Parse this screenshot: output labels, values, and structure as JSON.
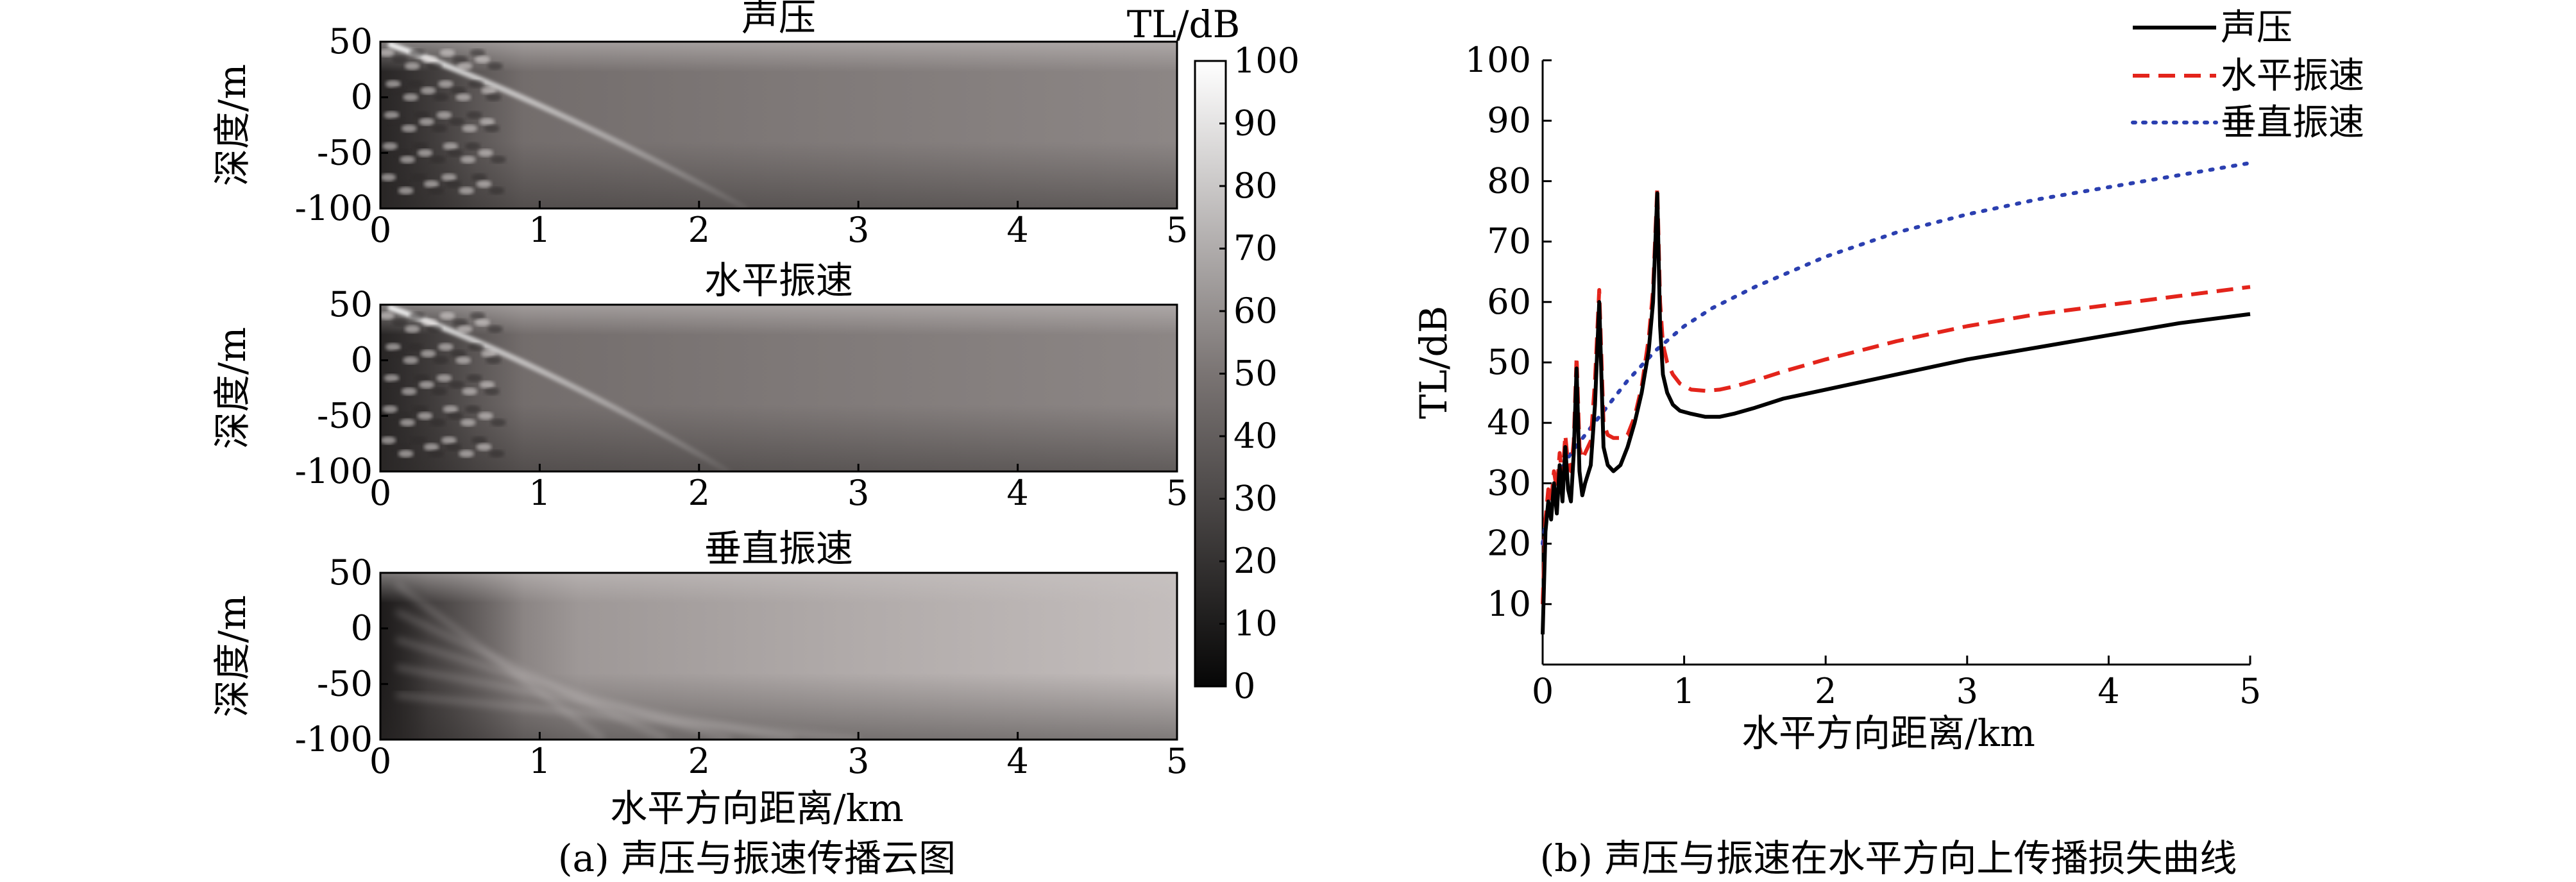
{
  "chart_data": [
    {
      "type": "heatmap",
      "panel": "a",
      "caption": "(a) 声压与振速传播云图",
      "xlabel": "水平方向距离/km",
      "ylabel": "深度/m",
      "xlim": [
        0,
        5
      ],
      "ylim": [
        -100,
        50
      ],
      "xticks": [
        "0",
        "1",
        "2",
        "3",
        "4",
        "5"
      ],
      "yticks": [
        "50",
        "0",
        "-50",
        "-100"
      ],
      "subplots": [
        {
          "title": "声压"
        },
        {
          "title": "水平振速"
        },
        {
          "title": "垂直振速"
        }
      ],
      "colorbar": {
        "label": "TL/dB",
        "range": [
          0,
          100
        ],
        "ticks": [
          "100",
          "90",
          "80",
          "70",
          "60",
          "50",
          "40",
          "30",
          "20",
          "10",
          "0"
        ]
      }
    },
    {
      "type": "line",
      "panel": "b",
      "caption": "(b) 声压与振速在水平方向上传播损失曲线",
      "xlabel": "水平方向距离/km",
      "ylabel": "TL/dB",
      "xlim": [
        0,
        5
      ],
      "ylim": [
        0,
        100
      ],
      "xticks": [
        "0",
        "1",
        "2",
        "3",
        "4",
        "5"
      ],
      "yticks": [
        "10",
        "20",
        "30",
        "40",
        "50",
        "60",
        "70",
        "80",
        "90",
        "100"
      ],
      "series": [
        {
          "name": "声压",
          "style": "solid",
          "color": "#000000",
          "x": [
            0.0,
            0.02,
            0.04,
            0.06,
            0.08,
            0.1,
            0.12,
            0.14,
            0.16,
            0.18,
            0.2,
            0.22,
            0.24,
            0.26,
            0.28,
            0.3,
            0.34,
            0.37,
            0.4,
            0.43,
            0.46,
            0.5,
            0.55,
            0.6,
            0.65,
            0.7,
            0.75,
            0.78,
            0.81,
            0.83,
            0.85,
            0.88,
            0.92,
            0.97,
            1.05,
            1.15,
            1.25,
            1.35,
            1.5,
            1.7,
            2.0,
            2.5,
            3.0,
            3.5,
            4.0,
            4.5,
            5.0
          ],
          "y": [
            5,
            22,
            27,
            24,
            30,
            25,
            33,
            27,
            36,
            29,
            27,
            35,
            49,
            32,
            28,
            30,
            33,
            43,
            60,
            36,
            33,
            32,
            33,
            36,
            40,
            45,
            52,
            60,
            78,
            56,
            48,
            45,
            43,
            42,
            41.5,
            41,
            41,
            41.5,
            42.5,
            44,
            45.5,
            48,
            50.5,
            52.5,
            54.5,
            56.5,
            58
          ]
        },
        {
          "name": "水平振速",
          "style": "dashed",
          "color": "#e3241b",
          "x": [
            0.0,
            0.02,
            0.04,
            0.06,
            0.08,
            0.1,
            0.12,
            0.14,
            0.16,
            0.18,
            0.2,
            0.22,
            0.24,
            0.26,
            0.28,
            0.3,
            0.34,
            0.37,
            0.4,
            0.43,
            0.46,
            0.5,
            0.55,
            0.6,
            0.65,
            0.7,
            0.75,
            0.78,
            0.81,
            0.83,
            0.85,
            0.88,
            0.92,
            0.97,
            1.05,
            1.15,
            1.25,
            1.35,
            1.5,
            1.7,
            2.0,
            2.5,
            3.0,
            3.5,
            4.0,
            4.5,
            5.0
          ],
          "y": [
            10,
            24,
            29,
            27,
            32,
            29,
            35,
            31,
            38,
            33,
            32,
            37,
            51,
            36,
            34,
            35,
            37,
            47,
            62,
            40,
            38,
            37.5,
            37.5,
            38,
            41,
            46,
            54,
            62,
            79,
            60,
            53,
            50,
            48,
            46.5,
            45.5,
            45.3,
            45.5,
            46,
            47,
            48.5,
            50.5,
            53.5,
            56,
            58,
            59.5,
            61,
            62.5
          ]
        },
        {
          "name": "垂直振速",
          "style": "dotted",
          "color": "#2b3fb0",
          "x": [
            0.0,
            0.05,
            0.1,
            0.15,
            0.2,
            0.3,
            0.4,
            0.5,
            0.6,
            0.7,
            0.8,
            0.9,
            1.0,
            1.2,
            1.5,
            2.0,
            2.5,
            3.0,
            3.5,
            4.0,
            4.5,
            5.0
          ],
          "y": [
            20,
            28,
            31,
            33,
            35,
            38,
            41,
            44,
            47,
            49.5,
            52,
            54,
            56,
            59,
            62.5,
            67.5,
            71.5,
            74.5,
            77,
            79,
            81,
            83
          ]
        }
      ],
      "legend_position": "top-right"
    }
  ]
}
